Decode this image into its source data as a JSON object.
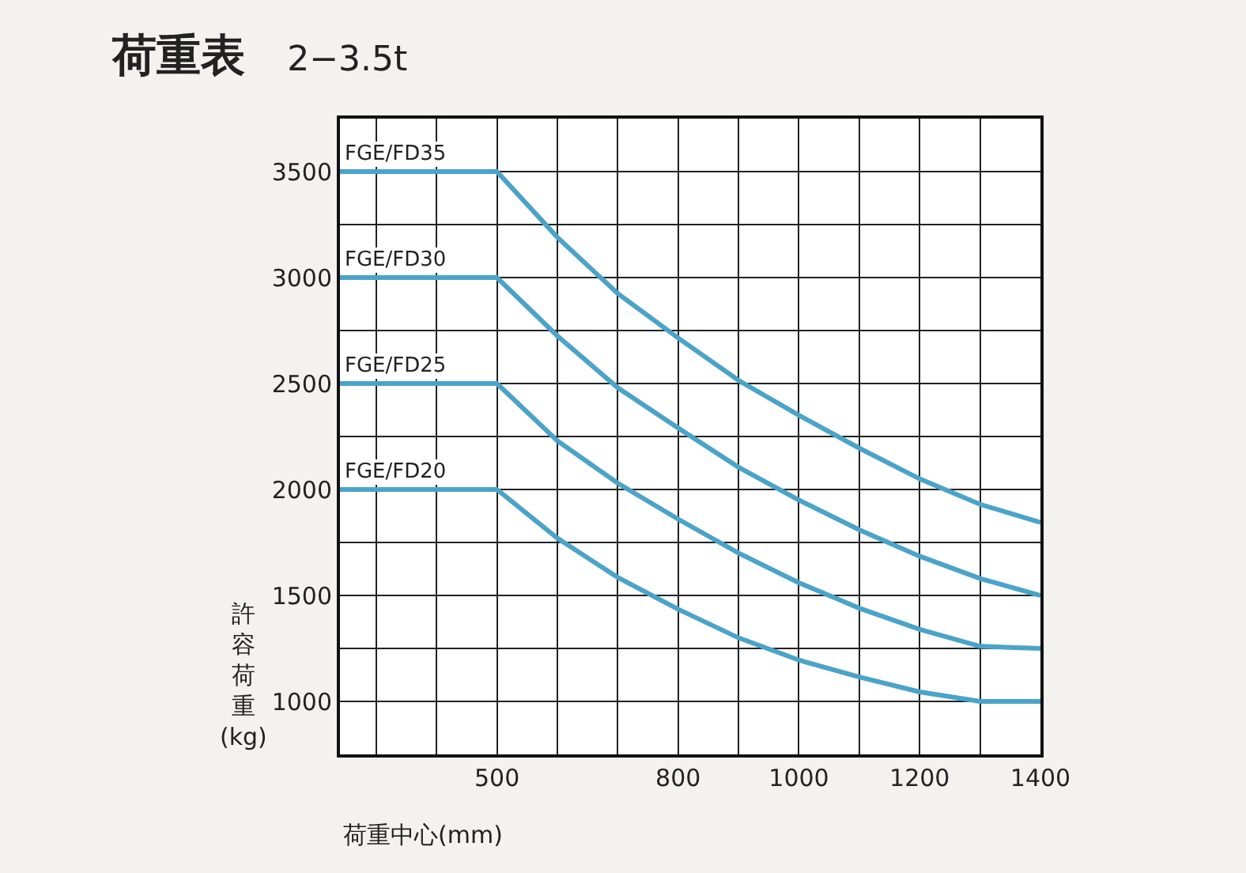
{
  "chart_data": {
    "type": "line",
    "title": "荷重表",
    "subtitle": "2−3.5t",
    "xlabel": "荷重中心(mm)",
    "ylabel": "許容荷重(kg)",
    "x": [
      240,
      500,
      600,
      700,
      800,
      900,
      1000,
      1100,
      1200,
      1300,
      1400
    ],
    "series": [
      {
        "name": "FGE/FD35",
        "color": "#4aa3c8",
        "values": [
          3500,
          3500,
          3190,
          2925,
          2715,
          2515,
          2350,
          2195,
          2050,
          1930,
          1845
        ]
      },
      {
        "name": "FGE/FD30",
        "color": "#4aa3c8",
        "values": [
          3000,
          3000,
          2725,
          2480,
          2290,
          2105,
          1950,
          1810,
          1685,
          1580,
          1500
        ]
      },
      {
        "name": "FGE/FD25",
        "color": "#4aa3c8",
        "values": [
          2500,
          2500,
          2230,
          2030,
          1860,
          1700,
          1560,
          1440,
          1340,
          1260,
          1250
        ]
      },
      {
        "name": "FGE/FD20",
        "color": "#4aa3c8",
        "values": [
          2000,
          2000,
          1770,
          1585,
          1435,
          1300,
          1195,
          1115,
          1045,
          1000,
          1000
        ]
      }
    ],
    "xlim": [
      240,
      1400
    ],
    "ylim": [
      750,
      3750
    ],
    "xticks": [
      {
        "value": 300,
        "label": null
      },
      {
        "value": 400,
        "label": null
      },
      500,
      {
        "value": 600,
        "label": null
      },
      {
        "value": 700,
        "label": null
      },
      800,
      {
        "value": 900,
        "label": null
      },
      1000,
      {
        "value": 1100,
        "label": null
      },
      1200,
      {
        "value": 1300,
        "label": null
      },
      1400
    ],
    "yticks": [
      {
        "value": 750,
        "label": null
      },
      1000,
      {
        "value": 1250,
        "label": null
      },
      1500,
      {
        "value": 1750,
        "label": null
      },
      2000,
      {
        "value": 2250,
        "label": null
      },
      2500,
      {
        "value": 2750,
        "label": null
      },
      3000,
      {
        "value": 3250,
        "label": null
      },
      3500,
      {
        "value": 3750,
        "label": null
      }
    ],
    "grid": true,
    "legend": false,
    "marker": "none",
    "line_style": "solid"
  }
}
